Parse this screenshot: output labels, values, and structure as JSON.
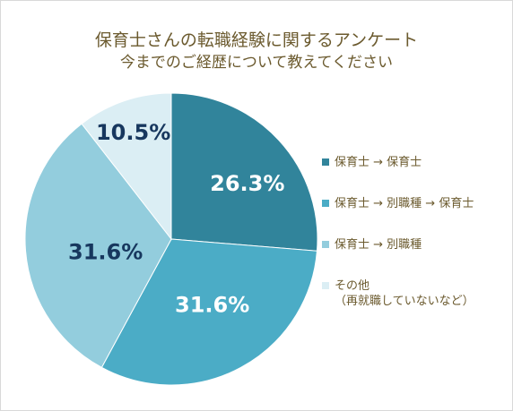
{
  "chart_data": {
    "type": "pie",
    "title": "保育士さんの転職経験に関するアンケート",
    "subtitle": "今までのご経歴について教えてください",
    "slices": [
      {
        "label": "保育士 → 保育士",
        "value": 26.3,
        "display": "26.3%",
        "color": "#31849b",
        "label_color": "#ffffff"
      },
      {
        "label": "保育士 → 別職種 → 保育士",
        "value": 31.6,
        "display": "31.6%",
        "color": "#4bacc6",
        "label_color": "#ffffff"
      },
      {
        "label": "保育士 → 別職種",
        "value": 31.6,
        "display": "31.6%",
        "color": "#93cddd",
        "label_color": "#17375e"
      },
      {
        "label": "その他\n（再就職していないなど）",
        "value": 10.5,
        "display": "10.5%",
        "color": "#dbeef4",
        "label_color": "#17375e"
      }
    ],
    "legend_position": "right"
  }
}
